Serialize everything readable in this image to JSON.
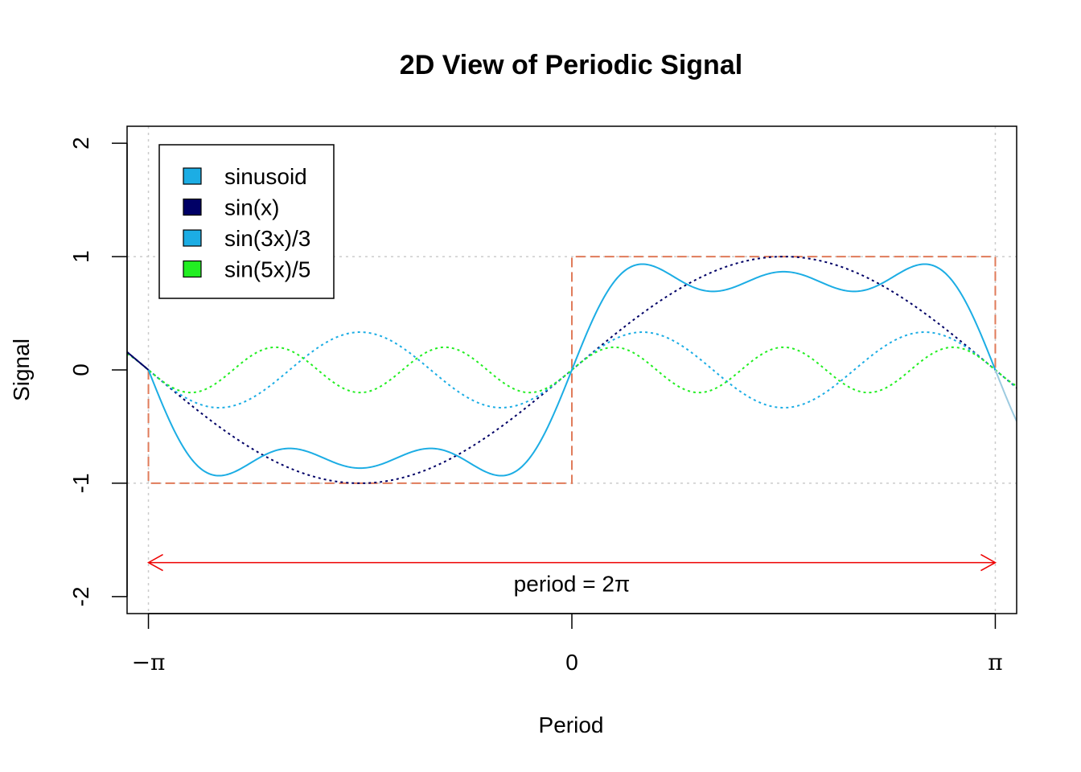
{
  "chart_data": {
    "type": "line",
    "title": "2D View of Periodic Signal",
    "xlabel": "Period",
    "ylabel": "Signal",
    "xlim": [
      -3.3,
      3.3
    ],
    "ylim": [
      -2.15,
      2.15
    ],
    "x_ticks": [
      {
        "value": -3.14159,
        "label": "−π"
      },
      {
        "value": 0,
        "label": "0"
      },
      {
        "value": 3.14159,
        "label": "π"
      }
    ],
    "y_ticks": [
      {
        "value": -2,
        "label": "-2"
      },
      {
        "value": -1,
        "label": "-1"
      },
      {
        "value": 0,
        "label": "0"
      },
      {
        "value": 1,
        "label": "1"
      },
      {
        "value": 2,
        "label": "2"
      }
    ],
    "legend": {
      "placement": "top-left",
      "entries": [
        {
          "label": "sinusoid",
          "color": "#1CADE4"
        },
        {
          "label": "sin(x)",
          "color": "#000066"
        },
        {
          "label": "sin(3x)/3",
          "color": "#1CADE4"
        },
        {
          "label": "sin(5x)/5",
          "color": "#22EE22"
        }
      ]
    },
    "series": [
      {
        "name": "sinusoid",
        "formula": "sin(x)+sin(3x)/3+sin(5x)/5",
        "x_range": [
          -3.14159,
          3.14159
        ],
        "color": "#1CADE4",
        "line": "solid"
      },
      {
        "name": "sin(x)",
        "formula": "sin(x)",
        "x_range": [
          -3.3,
          3.3
        ],
        "color": "#000066",
        "line": "dotted"
      },
      {
        "name": "sin(3x)/3",
        "formula": "sin(3x)/3",
        "x_range": [
          -3.3,
          3.3
        ],
        "color": "#1CADE4",
        "line": "dotted"
      },
      {
        "name": "sin(5x)/5",
        "formula": "sin(5x)/5",
        "x_range": [
          -3.3,
          3.3
        ],
        "color": "#22EE22",
        "line": "dotted"
      }
    ],
    "square_wave": {
      "low": -1,
      "high": 1,
      "color": "#E07B5A"
    },
    "reference_lines": {
      "y": [
        -1,
        1
      ],
      "x": [
        -3.14159,
        3.14159
      ],
      "color": "#CCCCCC"
    },
    "annotation": {
      "text": "period = 2π",
      "y": -1.7,
      "x_from": -3.14159,
      "x_to": 3.14159,
      "color": "#EE0000"
    },
    "grid": false
  }
}
